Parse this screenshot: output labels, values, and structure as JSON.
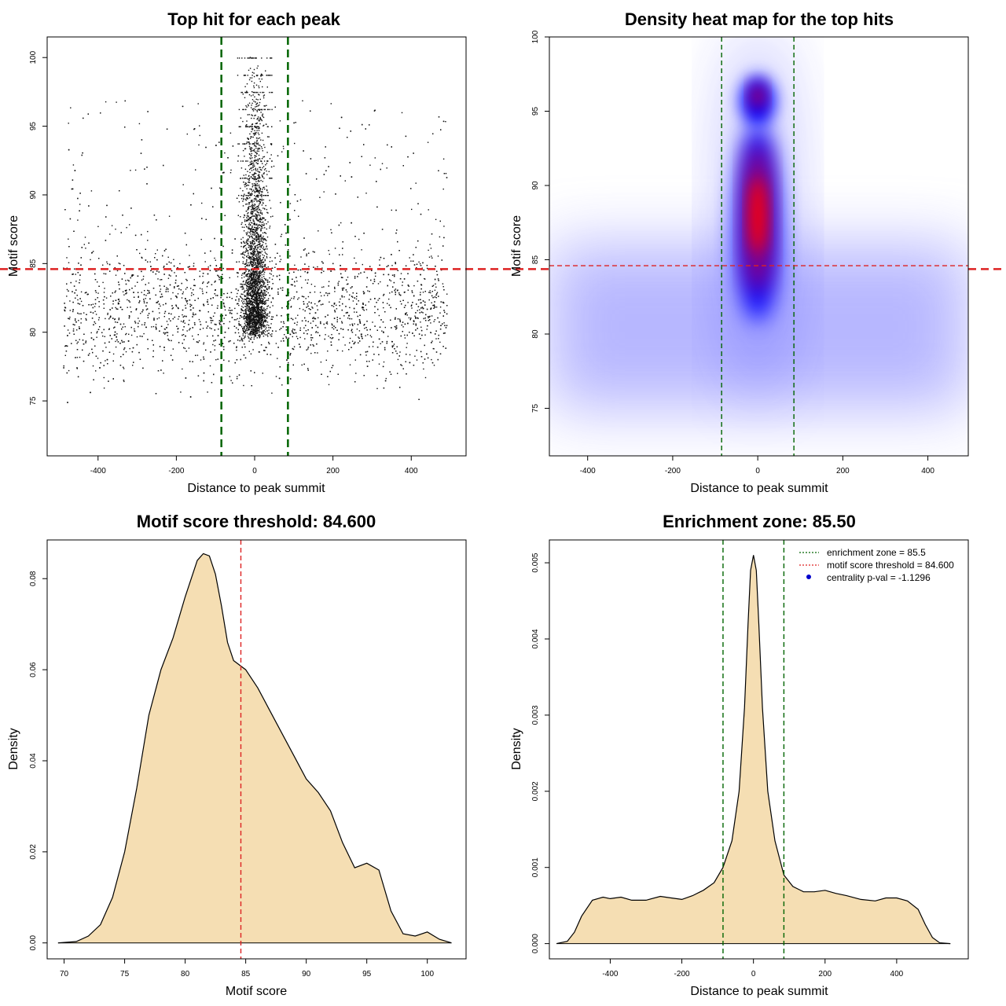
{
  "chart_data": [
    {
      "type": "scatter",
      "title": "Top hit for each peak",
      "xlabel": "Distance to peak summit",
      "ylabel": "Motif score",
      "xlim": [
        -530,
        540
      ],
      "ylim": [
        71,
        101.5
      ],
      "xticks": [
        -400,
        -200,
        0,
        200,
        400
      ],
      "yticks": [
        75,
        80,
        85,
        90,
        95,
        100
      ],
      "hlines": [
        {
          "y": 84.6,
          "color": "#dd2222",
          "style": "dashed"
        }
      ],
      "vlines": [
        {
          "x": -85,
          "color": "#006400",
          "style": "dashed"
        },
        {
          "x": 85,
          "color": "#006400",
          "style": "dashed"
        }
      ],
      "points_description": "Thousands of top-hit points; background spread over -490..490 with scores ~72-97 (densest 76-86); strong central band within -60..60 reaching scores up to 100."
    },
    {
      "type": "heatmap",
      "title": "Density heat map for the top hits",
      "xlabel": "Distance to peak summit",
      "ylabel": "Motif score",
      "xlim": [
        -490,
        495
      ],
      "ylim": [
        71.8,
        100
      ],
      "xticks": [
        -400,
        -200,
        0,
        200,
        400
      ],
      "yticks": [
        75,
        80,
        85,
        90,
        95,
        100
      ],
      "hlines": [
        {
          "y": 84.6,
          "color": "#dd2222",
          "style": "dashed"
        }
      ],
      "vlines": [
        {
          "x": -85,
          "color": "#006400",
          "style": "dashed"
        },
        {
          "x": 85,
          "color": "#006400",
          "style": "dashed"
        }
      ],
      "colormap": [
        "#ffffff",
        "#0000ff",
        "#ff0000"
      ],
      "hotspots": [
        {
          "x": 0,
          "y": 87.5,
          "level": "high"
        },
        {
          "x": 0,
          "y": 96,
          "level": "medium"
        },
        {
          "x": 0,
          "y": 82,
          "level": "medium"
        },
        {
          "x": -400,
          "y": 81,
          "level": "low"
        },
        {
          "x": 400,
          "y": 81,
          "level": "low"
        }
      ]
    },
    {
      "type": "area",
      "title": "Motif score threshold: 84.600",
      "xlabel": "Motif score",
      "ylabel": "Density",
      "xlim": [
        68.6,
        103.2
      ],
      "ylim": [
        -0.0035,
        0.0885
      ],
      "xticks": [
        70,
        75,
        80,
        85,
        90,
        95,
        100
      ],
      "yticks": [
        0.0,
        0.02,
        0.04,
        0.06,
        0.08
      ],
      "ytick_labels": [
        "0.00",
        "0.02",
        "0.04",
        "0.06",
        "0.08"
      ],
      "fill": "#f5deb3",
      "vlines": [
        {
          "x": 84.6,
          "color": "#dd2222",
          "style": "dashed"
        }
      ],
      "x": [
        69.5,
        71,
        72,
        73,
        74,
        75,
        76,
        77,
        78,
        79,
        80,
        81,
        81.5,
        82,
        82.5,
        83,
        83.5,
        84,
        85,
        86,
        87,
        88,
        89,
        90,
        91,
        92,
        93,
        94,
        95,
        96,
        97,
        98,
        99,
        100,
        101,
        102
      ],
      "y": [
        0.0,
        0.0003,
        0.0015,
        0.004,
        0.01,
        0.02,
        0.034,
        0.05,
        0.06,
        0.067,
        0.076,
        0.084,
        0.0855,
        0.085,
        0.081,
        0.074,
        0.066,
        0.062,
        0.06,
        0.056,
        0.051,
        0.046,
        0.041,
        0.036,
        0.033,
        0.029,
        0.022,
        0.0165,
        0.0175,
        0.016,
        0.007,
        0.002,
        0.0015,
        0.0024,
        0.0008,
        0.0
      ]
    },
    {
      "type": "area",
      "title": "Enrichment zone: 85.50",
      "xlabel": "Distance to peak summit",
      "ylabel": "Density",
      "xlim": [
        -570,
        600
      ],
      "ylim": [
        -0.0002,
        0.0053
      ],
      "xticks": [
        -400,
        -200,
        0,
        200,
        400
      ],
      "yticks": [
        0.0,
        0.001,
        0.002,
        0.003,
        0.004,
        0.005
      ],
      "ytick_labels": [
        "0.000",
        "0.001",
        "0.002",
        "0.003",
        "0.004",
        "0.005"
      ],
      "fill": "#f5deb3",
      "vlines": [
        {
          "x": -85,
          "color": "#006400",
          "style": "dashed"
        },
        {
          "x": 85,
          "color": "#006400",
          "style": "dashed"
        }
      ],
      "x": [
        -550,
        -520,
        -500,
        -480,
        -450,
        -420,
        -400,
        -370,
        -340,
        -300,
        -260,
        -230,
        -200,
        -170,
        -140,
        -110,
        -85,
        -60,
        -40,
        -25,
        -15,
        -8,
        0,
        8,
        15,
        25,
        40,
        60,
        85,
        110,
        140,
        170,
        200,
        230,
        260,
        300,
        340,
        370,
        400,
        430,
        460,
        480,
        500,
        520,
        550
      ],
      "y": [
        0.0,
        3e-05,
        0.00015,
        0.00036,
        0.00057,
        0.00061,
        0.00059,
        0.00061,
        0.00057,
        0.00057,
        0.00062,
        0.0006,
        0.00058,
        0.00063,
        0.0007,
        0.0008,
        0.001,
        0.00135,
        0.002,
        0.0031,
        0.0042,
        0.0049,
        0.0051,
        0.0049,
        0.0042,
        0.0031,
        0.002,
        0.00135,
        0.0009,
        0.00075,
        0.00068,
        0.00068,
        0.0007,
        0.00066,
        0.00063,
        0.00058,
        0.00056,
        0.0006,
        0.0006,
        0.00056,
        0.00045,
        0.00025,
        8e-05,
        1e-05,
        0.0
      ],
      "legend": [
        {
          "label": "enrichment zone = 85.5",
          "color": "#006400",
          "style": "dotted"
        },
        {
          "label": "motif score threshold = 84.600",
          "color": "#dd2222",
          "style": "dotted"
        },
        {
          "label": "centrality p-val = -1.1296",
          "color": "#0000cc",
          "style": "point"
        }
      ],
      "legend_position": "top-right"
    }
  ]
}
